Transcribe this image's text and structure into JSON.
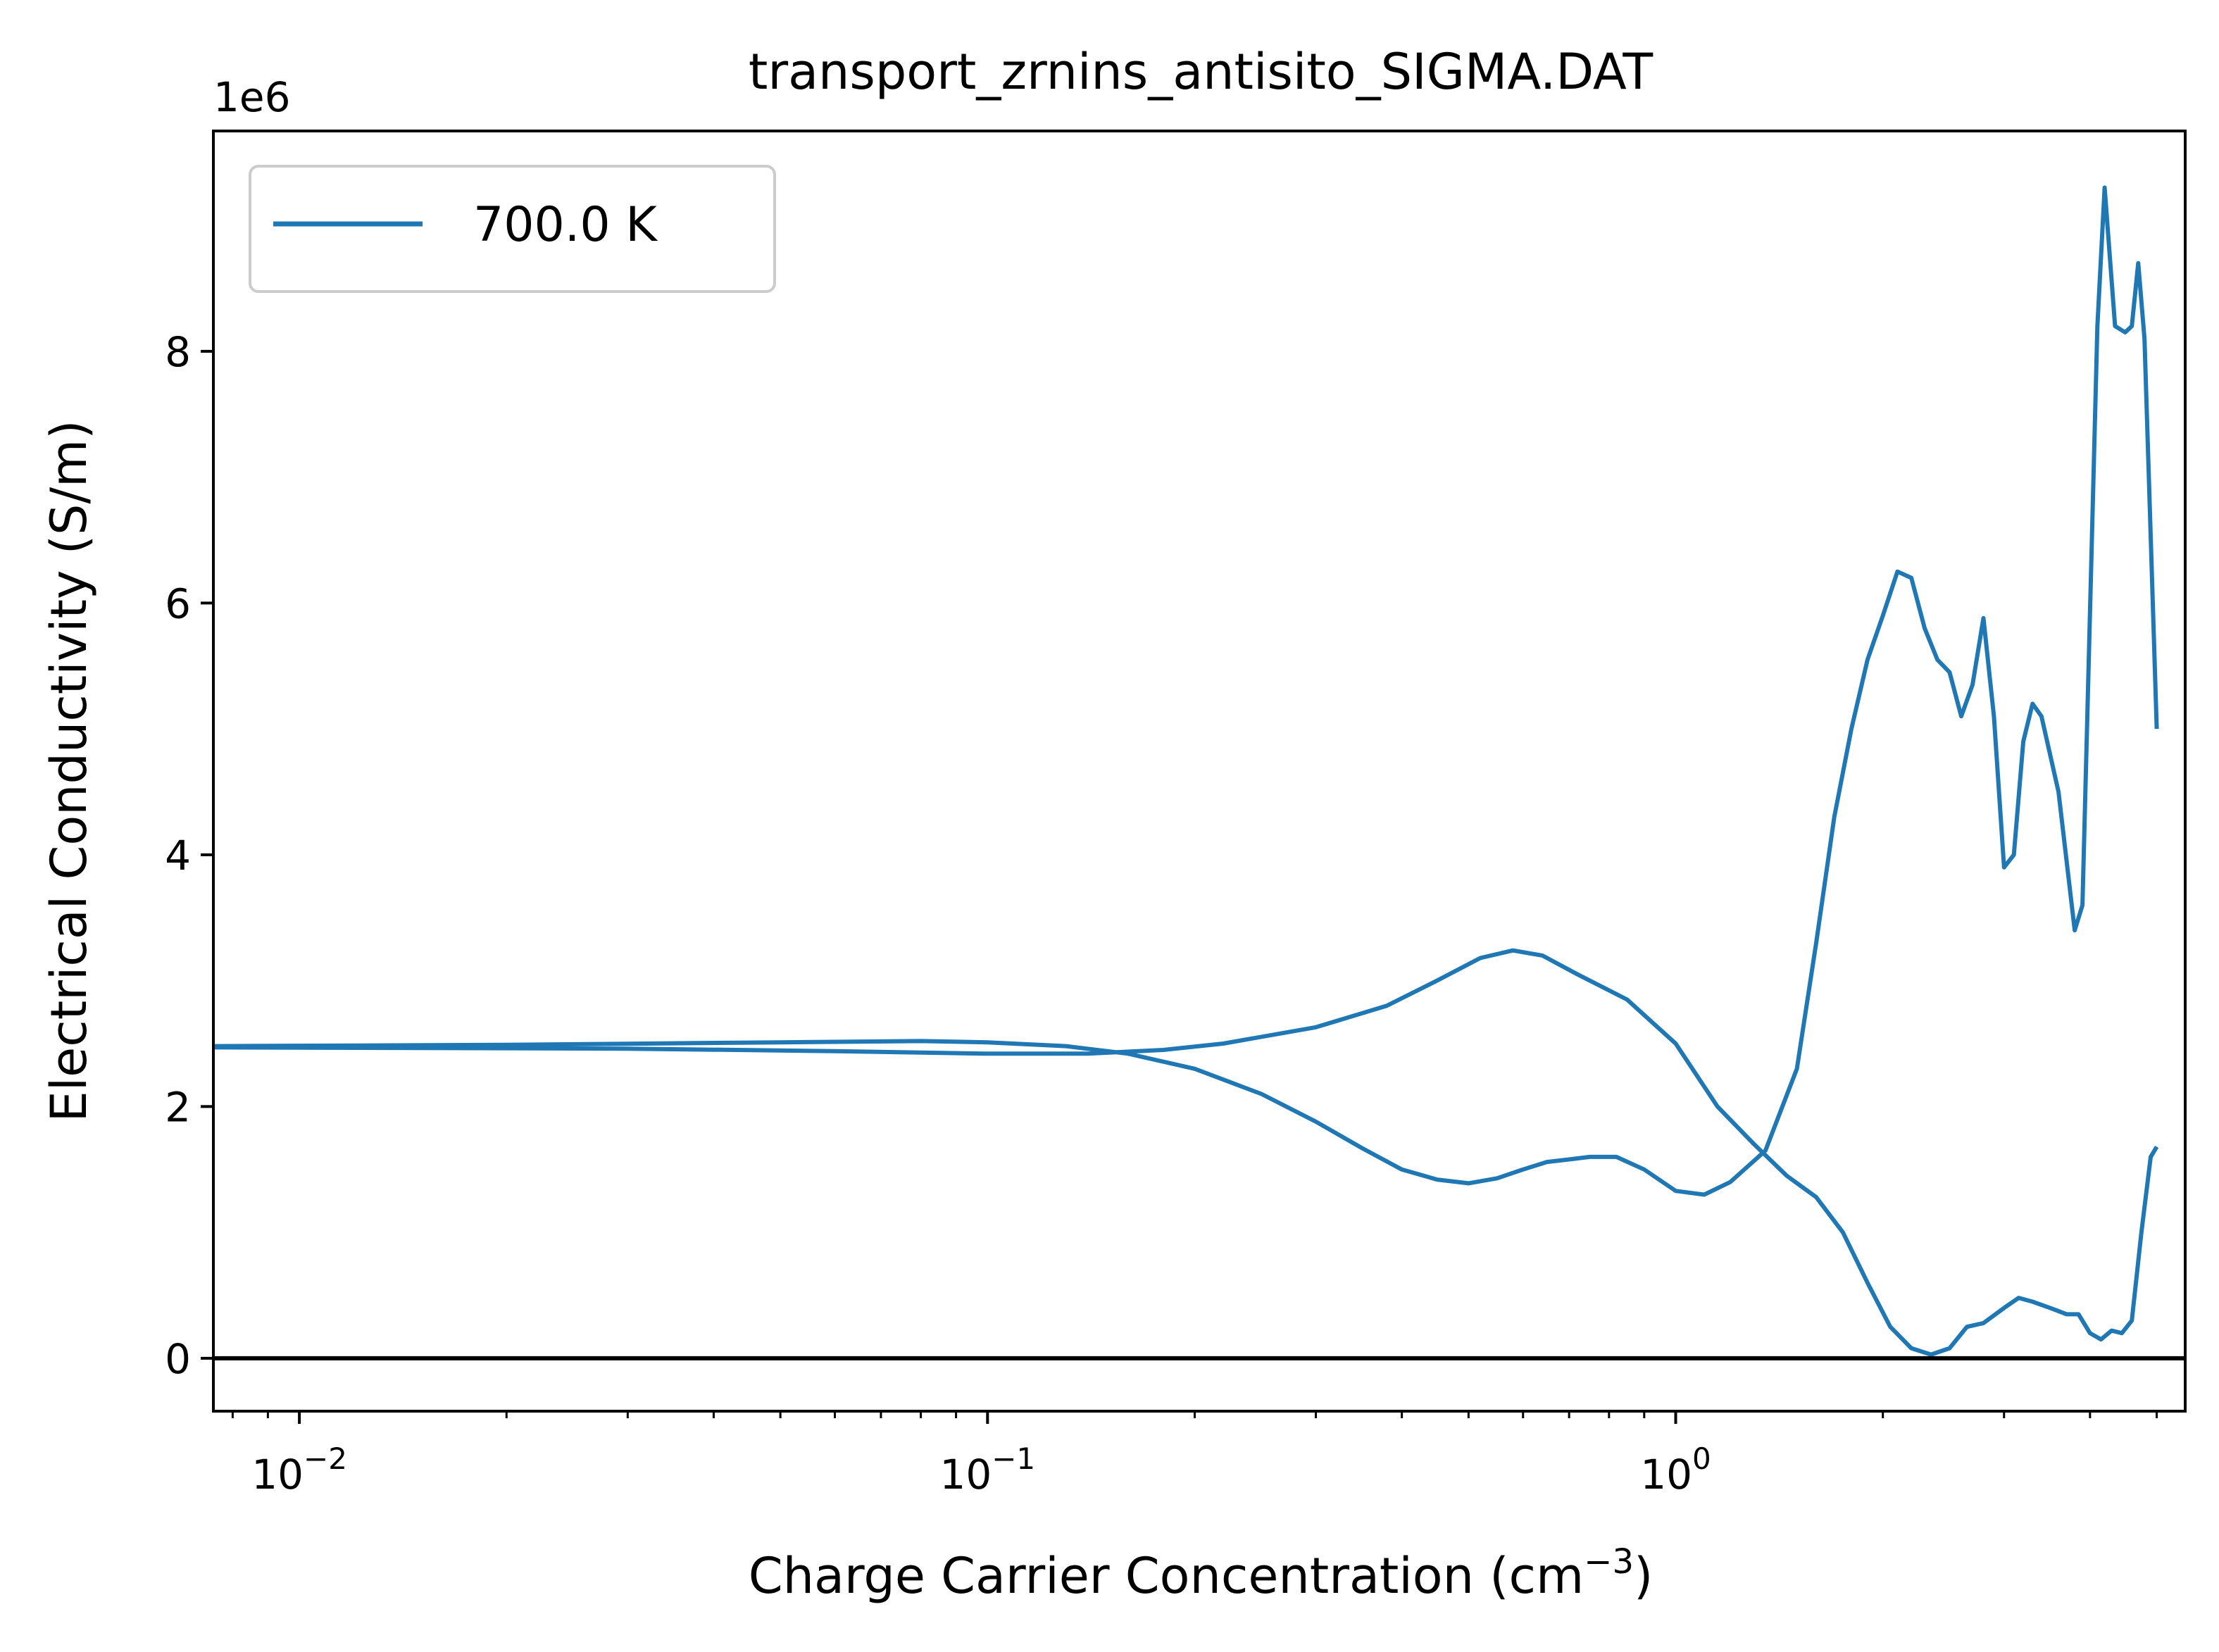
{
  "chart_data": {
    "type": "line",
    "title": "transport_zrnins_antisito_SIGMA.DAT",
    "xlabel": "Charge Carrier Concentration (cm",
    "xlabel_sup": "−3",
    "xlabel_end": ")",
    "ylabel": "Electrical Conductivity (S/m)",
    "y_multiplier": "1e6",
    "x_scale": "log",
    "xlim": [
      0.0075,
      5.5
    ],
    "ylim": [
      -0.42,
      9.75
    ],
    "x_major_ticks": [
      0.01,
      0.1,
      1
    ],
    "x_tick_base": "10",
    "x_tick_exponents": [
      "−2",
      "−1",
      "0"
    ],
    "y_ticks": [
      0,
      2,
      4,
      6,
      8
    ],
    "y_tick_labels": [
      "0",
      "2",
      "4",
      "6",
      "8"
    ],
    "grid": false,
    "legend_position": "top-left",
    "zero_line": true,
    "series": [
      {
        "name": "700.0 K",
        "color": "#1f77b4",
        "branches": [
          [
            [
              0.0075,
              2.48
            ],
            [
              0.02,
              2.49
            ],
            [
              0.05,
              2.51
            ],
            [
              0.08,
              2.52
            ],
            [
              0.1,
              2.51
            ],
            [
              0.13,
              2.48
            ],
            [
              0.16,
              2.42
            ],
            [
              0.2,
              2.3
            ],
            [
              0.25,
              2.1
            ],
            [
              0.3,
              1.88
            ],
            [
              0.35,
              1.67
            ],
            [
              0.4,
              1.5
            ],
            [
              0.45,
              1.42
            ],
            [
              0.5,
              1.39
            ],
            [
              0.55,
              1.43
            ],
            [
              0.6,
              1.5
            ],
            [
              0.65,
              1.56
            ],
            [
              0.7,
              1.58
            ],
            [
              0.75,
              1.6
            ],
            [
              0.82,
              1.6
            ],
            [
              0.9,
              1.5
            ],
            [
              1.0,
              1.33
            ],
            [
              1.1,
              1.3
            ],
            [
              1.2,
              1.4
            ],
            [
              1.35,
              1.65
            ],
            [
              1.5,
              2.3
            ],
            [
              1.6,
              3.3
            ],
            [
              1.7,
              4.3
            ],
            [
              1.8,
              5.0
            ],
            [
              1.9,
              5.55
            ],
            [
              2.0,
              5.9
            ],
            [
              2.1,
              6.25
            ],
            [
              2.2,
              6.2
            ],
            [
              2.3,
              5.8
            ],
            [
              2.4,
              5.55
            ],
            [
              2.5,
              5.45
            ],
            [
              2.6,
              5.1
            ],
            [
              2.7,
              5.35
            ],
            [
              2.8,
              5.88
            ],
            [
              2.9,
              5.1
            ],
            [
              3.0,
              3.9
            ],
            [
              3.1,
              4.0
            ],
            [
              3.2,
              4.9
            ],
            [
              3.3,
              5.2
            ],
            [
              3.4,
              5.1
            ],
            [
              3.6,
              4.5
            ],
            [
              3.8,
              3.4
            ],
            [
              3.9,
              3.6
            ],
            [
              4.1,
              8.2
            ],
            [
              4.2,
              9.3
            ],
            [
              4.35,
              8.2
            ],
            [
              4.5,
              8.15
            ],
            [
              4.6,
              8.2
            ],
            [
              4.7,
              8.7
            ],
            [
              4.8,
              8.1
            ],
            [
              5.0,
              5.0
            ]
          ],
          [
            [
              0.0075,
              2.47
            ],
            [
              0.03,
              2.46
            ],
            [
              0.06,
              2.44
            ],
            [
              0.1,
              2.42
            ],
            [
              0.14,
              2.42
            ],
            [
              0.18,
              2.45
            ],
            [
              0.22,
              2.5
            ],
            [
              0.3,
              2.63
            ],
            [
              0.38,
              2.8
            ],
            [
              0.45,
              3.0
            ],
            [
              0.52,
              3.18
            ],
            [
              0.58,
              3.24
            ],
            [
              0.64,
              3.2
            ],
            [
              0.72,
              3.05
            ],
            [
              0.85,
              2.85
            ],
            [
              1.0,
              2.5
            ],
            [
              1.15,
              2.0
            ],
            [
              1.3,
              1.7
            ],
            [
              1.45,
              1.45
            ],
            [
              1.6,
              1.28
            ],
            [
              1.75,
              1.0
            ],
            [
              1.9,
              0.6
            ],
            [
              2.05,
              0.25
            ],
            [
              2.2,
              0.08
            ],
            [
              2.35,
              0.03
            ],
            [
              2.5,
              0.08
            ],
            [
              2.65,
              0.25
            ],
            [
              2.8,
              0.28
            ],
            [
              3.0,
              0.4
            ],
            [
              3.15,
              0.48
            ],
            [
              3.3,
              0.45
            ],
            [
              3.5,
              0.4
            ],
            [
              3.7,
              0.35
            ],
            [
              3.85,
              0.35
            ],
            [
              4.0,
              0.2
            ],
            [
              4.15,
              0.15
            ],
            [
              4.3,
              0.22
            ],
            [
              4.45,
              0.2
            ],
            [
              4.6,
              0.3
            ],
            [
              4.75,
              1.0
            ],
            [
              4.9,
              1.6
            ],
            [
              5.0,
              1.68
            ]
          ]
        ]
      }
    ]
  }
}
